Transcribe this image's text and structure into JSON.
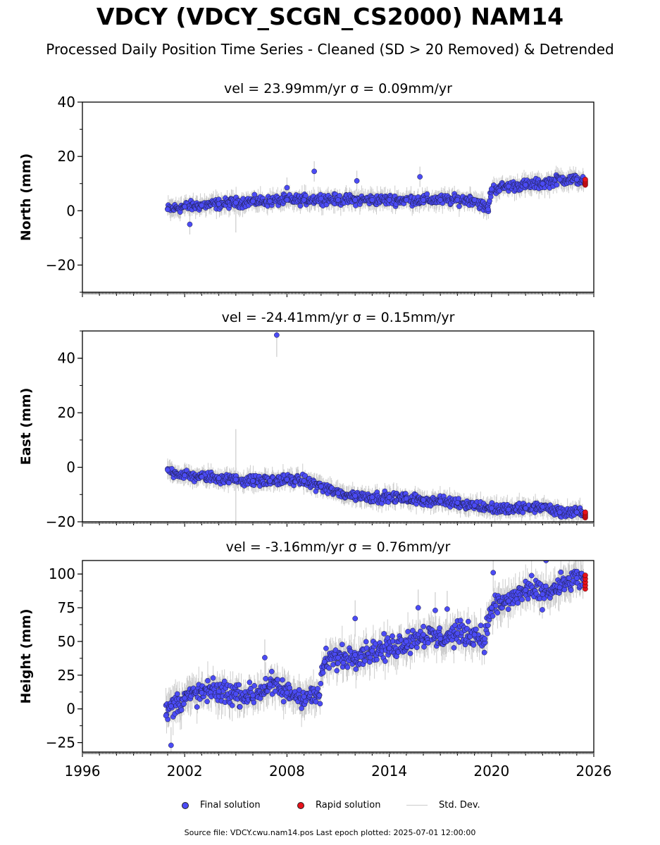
{
  "title": "VDCY (VDCY_SCGN_CS2000) NAM14",
  "subtitle": "Processed Daily Position Time Series - Cleaned (SD > 20 Removed) & Detrended",
  "colors": {
    "final": "#4b4bf5",
    "rapid": "#e8121b",
    "stddev": "#cccccc"
  },
  "chart_data": [
    {
      "type": "scatter",
      "title": "vel = 23.99mm/yr   σ = 0.09mm/yr",
      "ylabel": "North (mm)",
      "xlim": [
        1996,
        2026
      ],
      "ylim": [
        -30,
        40
      ],
      "yticks": [
        -20,
        0,
        20,
        40
      ],
      "series": [
        {
          "name": "Final solution",
          "x": [
            2001.0,
            2002.0,
            2003.0,
            2004.0,
            2005.0,
            2006.0,
            2007.0,
            2008.0,
            2009.0,
            2010.0,
            2011.0,
            2012.0,
            2013.0,
            2014.0,
            2015.0,
            2016.0,
            2017.0,
            2018.0,
            2019.0,
            2019.8,
            2020.0,
            2021.0,
            2022.0,
            2023.0,
            2024.0,
            2025.0,
            2025.4
          ],
          "y": [
            0.5,
            1.5,
            2.0,
            2.5,
            3.0,
            3.5,
            3.5,
            4.0,
            4.0,
            4.5,
            4.0,
            4.0,
            4.0,
            4.0,
            4.0,
            4.0,
            4.0,
            4.0,
            4.0,
            0.5,
            8.0,
            9.0,
            9.5,
            10.0,
            11.5,
            11.5,
            11.0
          ]
        },
        {
          "name": "Rapid solution",
          "x": [
            2025.5
          ],
          "y": [
            10.5
          ]
        }
      ],
      "outliers": {
        "x": [
          2002.3,
          2008.0,
          2009.6,
          2012.1,
          2015.8
        ],
        "y": [
          -5.0,
          8.5,
          14.5,
          11.0,
          12.5
        ]
      }
    },
    {
      "type": "scatter",
      "title": "vel = -24.41mm/yr   σ = 0.15mm/yr",
      "ylabel": "East (mm)",
      "xlim": [
        1996,
        2026
      ],
      "ylim": [
        -20,
        50
      ],
      "yticks": [
        -20,
        0,
        20,
        40
      ],
      "series": [
        {
          "name": "Final solution",
          "x": [
            2001.0,
            2002.0,
            2003.0,
            2004.0,
            2005.0,
            2006.0,
            2007.0,
            2008.0,
            2009.0,
            2010.0,
            2011.0,
            2012.0,
            2013.0,
            2014.0,
            2015.0,
            2016.0,
            2017.0,
            2018.0,
            2019.0,
            2020.0,
            2021.0,
            2022.0,
            2023.0,
            2024.0,
            2025.0,
            2025.4
          ],
          "y": [
            -1.0,
            -3.0,
            -3.5,
            -4.0,
            -4.5,
            -5.0,
            -5.0,
            -4.5,
            -5.0,
            -7.0,
            -9.5,
            -10.5,
            -11.0,
            -11.0,
            -11.5,
            -12.0,
            -12.5,
            -13.0,
            -14.0,
            -15.0,
            -15.5,
            -15.0,
            -14.5,
            -16.5,
            -16.5,
            -17.0
          ]
        },
        {
          "name": "Rapid solution",
          "x": [
            2025.5
          ],
          "y": [
            -17.5
          ]
        }
      ],
      "outliers": {
        "x": [
          2007.4
        ],
        "y": [
          48.5
        ]
      }
    },
    {
      "type": "scatter",
      "title": "vel = -3.16mm/yr   σ = 0.76mm/yr",
      "ylabel": "Height (mm)",
      "xlim": [
        1996,
        2026
      ],
      "ylim": [
        -32,
        110
      ],
      "yticks": [
        -25,
        0,
        25,
        50,
        75,
        100
      ],
      "xticks": [
        1996,
        2002,
        2008,
        2014,
        2020,
        2026
      ],
      "series": [
        {
          "name": "Final solution",
          "x": [
            2000.9,
            2001.2,
            2002.0,
            2003.0,
            2004.0,
            2005.0,
            2006.0,
            2007.0,
            2008.0,
            2009.0,
            2009.9,
            2010.2,
            2011.0,
            2012.0,
            2013.0,
            2014.0,
            2015.0,
            2016.0,
            2017.0,
            2018.0,
            2019.0,
            2019.6,
            2020.0,
            2021.0,
            2022.0,
            2023.0,
            2024.0,
            2025.0,
            2025.4
          ],
          "y": [
            -5,
            2,
            8,
            12,
            13,
            11,
            10,
            18,
            12,
            9,
            10,
            35,
            38,
            40,
            43,
            45,
            50,
            55,
            52,
            56,
            55,
            52,
            75,
            80,
            88,
            85,
            90,
            97,
            96
          ]
        },
        {
          "name": "Rapid solution",
          "x": [
            2025.5
          ],
          "y": [
            94
          ]
        }
      ],
      "outliers": {
        "x": [
          2001.2,
          2006.7,
          2012.0,
          2015.7,
          2016.7,
          2017.4,
          2020.1,
          2023.2
        ],
        "y": [
          -27,
          38,
          67,
          75,
          73,
          74,
          101,
          110
        ]
      }
    }
  ],
  "legend": {
    "final": "Final solution",
    "rapid": "Rapid solution",
    "stddev": "Std. Dev."
  },
  "footer": "Source file: VDCY.cwu.nam14.pos  Last epoch plotted: 2025-07-01 12:00:00"
}
